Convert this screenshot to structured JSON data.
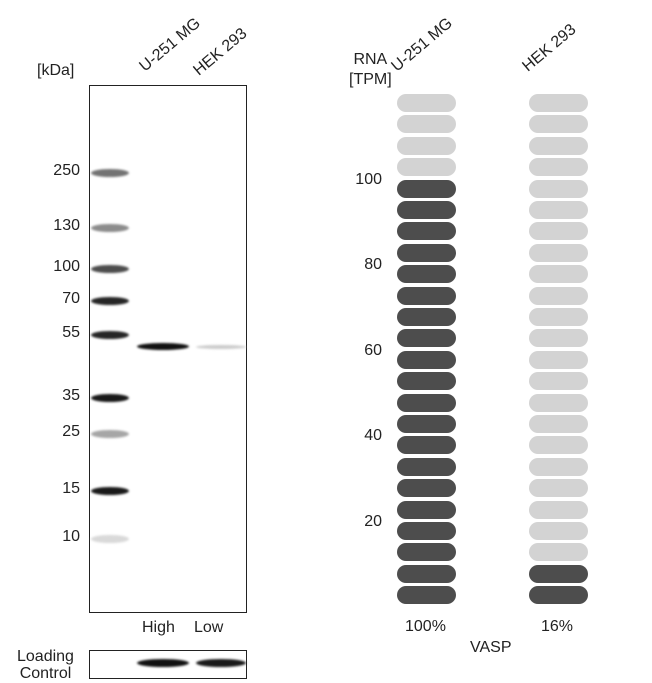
{
  "wb": {
    "unit_label": "[kDa]",
    "lanes": [
      "U-251 MG",
      "HEK 293"
    ],
    "markers": [
      "250",
      "130",
      "100",
      "70",
      "55",
      "35",
      "25",
      "15",
      "10"
    ],
    "lane_levels": [
      "High",
      "Low"
    ],
    "loading_control_label_1": "Loading",
    "loading_control_label_2": "Control"
  },
  "rna": {
    "axis_label_1": "RNA",
    "axis_label_2": "[TPM]",
    "ticks": [
      "100",
      "80",
      "60",
      "40",
      "20"
    ],
    "cell_lines": [
      "U-251 MG",
      "HEK 293"
    ],
    "percent": [
      "100%",
      "16%"
    ],
    "filled_segments": [
      20,
      2
    ],
    "total_segments": 24,
    "gene": "VASP",
    "colors": {
      "filled": "#4d4d4d",
      "empty": "#d3d3d3"
    }
  }
}
